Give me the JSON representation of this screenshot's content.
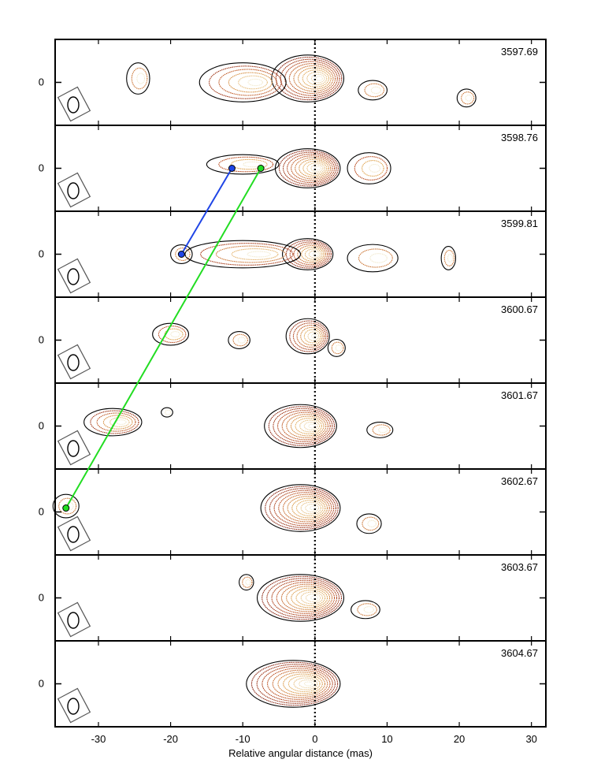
{
  "chart_data": {
    "type": "contour",
    "xlabel": "Relative angular distance (mas)",
    "xlim": [
      -36,
      32
    ],
    "x_ticks": [
      -30,
      -20,
      -10,
      0,
      10,
      20,
      30
    ],
    "ylim": [
      -11,
      11
    ],
    "y_tick_label": "0",
    "core_marker_x": 0,
    "colors": {
      "outer_contour": "#000000",
      "contour_dark": "#7a1a10",
      "contour_mid": "#b84a1e",
      "contour_light": "#e0a552",
      "contour_lightest": "#f2ead0",
      "track_blue": "#1f45e6",
      "track_green": "#22dd22"
    },
    "panels": [
      {
        "epoch": "3597.69",
        "components": [
          {
            "x": -1,
            "y": 1,
            "rx": 5,
            "ry": 6,
            "levels": 11
          },
          {
            "x": -10,
            "y": 0,
            "rx": 6,
            "ry": 5,
            "levels": 6
          },
          {
            "x": -24.5,
            "y": 1,
            "rx": 1.6,
            "ry": 4,
            "levels": 3
          },
          {
            "x": 8,
            "y": -2,
            "rx": 2,
            "ry": 2.5,
            "levels": 3
          },
          {
            "x": 21,
            "y": -4,
            "rx": 1.3,
            "ry": 2.3,
            "levels": 3
          }
        ]
      },
      {
        "epoch": "3598.76",
        "components": [
          {
            "x": -1,
            "y": 0,
            "rx": 4.5,
            "ry": 5,
            "levels": 11
          },
          {
            "x": -10,
            "y": 1,
            "rx": 5,
            "ry": 2.5,
            "levels": 4
          },
          {
            "x": 7.5,
            "y": 0,
            "rx": 3,
            "ry": 4,
            "levels": 4
          }
        ]
      },
      {
        "epoch": "3599.81",
        "components": [
          {
            "x": -1,
            "y": 0,
            "rx": 3.5,
            "ry": 4,
            "levels": 9
          },
          {
            "x": -10,
            "y": 0,
            "rx": 8,
            "ry": 3.5,
            "levels": 5
          },
          {
            "x": -18.5,
            "y": 0,
            "rx": 1.5,
            "ry": 2.4,
            "levels": 3
          },
          {
            "x": 8,
            "y": -1,
            "rx": 3.5,
            "ry": 3.5,
            "levels": 3
          },
          {
            "x": 18.5,
            "y": -1,
            "rx": 1,
            "ry": 3,
            "levels": 3
          }
        ]
      },
      {
        "epoch": "3600.67",
        "components": [
          {
            "x": -1,
            "y": 1,
            "rx": 3,
            "ry": 4.5,
            "levels": 8
          },
          {
            "x": -20,
            "y": 1.5,
            "rx": 2.5,
            "ry": 2.8,
            "levels": 4
          },
          {
            "x": -10.5,
            "y": 0,
            "rx": 1.5,
            "ry": 2.2,
            "levels": 3
          },
          {
            "x": 3,
            "y": -2,
            "rx": 1.2,
            "ry": 2.2,
            "levels": 3
          }
        ]
      },
      {
        "epoch": "3601.67",
        "components": [
          {
            "x": -2,
            "y": 0,
            "rx": 5,
            "ry": 5.5,
            "levels": 11
          },
          {
            "x": -28,
            "y": 1,
            "rx": 4,
            "ry": 3.5,
            "levels": 6
          },
          {
            "x": 9,
            "y": -1,
            "rx": 1.8,
            "ry": 2,
            "levels": 3
          },
          {
            "x": -20.5,
            "y": 3.5,
            "rx": 0.8,
            "ry": 1.2,
            "levels": 2
          }
        ]
      },
      {
        "epoch": "3602.67",
        "components": [
          {
            "x": -2,
            "y": 1,
            "rx": 5.5,
            "ry": 6,
            "levels": 12
          },
          {
            "x": -34.5,
            "y": 1.5,
            "rx": 1.8,
            "ry": 3,
            "levels": 3
          },
          {
            "x": 7.5,
            "y": -3,
            "rx": 1.7,
            "ry": 2.5,
            "levels": 3
          }
        ]
      },
      {
        "epoch": "3603.67",
        "components": [
          {
            "x": -2,
            "y": 0,
            "rx": 6,
            "ry": 6,
            "levels": 12
          },
          {
            "x": -9.5,
            "y": 4,
            "rx": 1,
            "ry": 2,
            "levels": 3
          },
          {
            "x": 7,
            "y": -3,
            "rx": 2,
            "ry": 2.3,
            "levels": 3
          }
        ]
      },
      {
        "epoch": "3604.67",
        "components": [
          {
            "x": -3,
            "y": 0,
            "rx": 6.5,
            "ry": 6,
            "levels": 12
          }
        ]
      }
    ],
    "tracks": [
      {
        "color": "blue",
        "points": [
          {
            "panel": 2,
            "x": -11.5,
            "y": 0
          },
          {
            "panel": 3,
            "x": -18.5,
            "y": 0
          }
        ]
      },
      {
        "color": "green",
        "points": [
          {
            "panel": 2,
            "x": -7.5,
            "y": 0
          },
          {
            "panel": 6,
            "x": -34.5,
            "y": 1
          }
        ]
      }
    ]
  }
}
